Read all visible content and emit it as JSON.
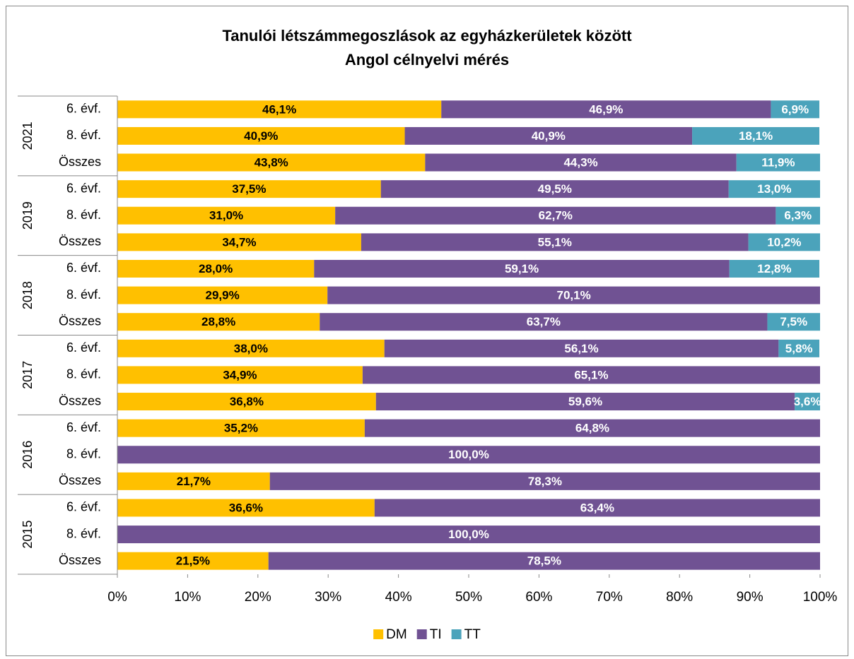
{
  "chart_data": {
    "type": "stacked-bar-horizontal",
    "title": [
      "Tanulói létszámmegoszlások az egyházkerületek között",
      "Angol célnyelvi mérés"
    ],
    "category_groups": [
      {
        "name": "2021",
        "categories": [
          "6. évf.",
          "8. évf.",
          "Összes"
        ]
      },
      {
        "name": "2019",
        "categories": [
          "6. évf.",
          "8. évf.",
          "Összes"
        ]
      },
      {
        "name": "2018",
        "categories": [
          "6. évf.",
          "8. évf.",
          "Összes"
        ]
      },
      {
        "name": "2017",
        "categories": [
          "6. évf.",
          "8. évf.",
          "Összes"
        ]
      },
      {
        "name": "2016",
        "categories": [
          "6. évf.",
          "8. évf.",
          "Összes"
        ]
      },
      {
        "name": "2015",
        "categories": [
          "6. évf.",
          "8. évf.",
          "Összes"
        ]
      }
    ],
    "series": [
      {
        "name": "DM",
        "color": "#FFC000",
        "label_color": "#000000",
        "values": [
          46.1,
          40.9,
          43.8,
          37.5,
          31.0,
          34.7,
          28.0,
          29.9,
          28.8,
          38.0,
          34.9,
          36.8,
          35.2,
          null,
          21.7,
          36.6,
          null,
          21.5
        ],
        "value_labels": [
          "46,1%",
          "40,9%",
          "43,8%",
          "37,5%",
          "31,0%",
          "34,7%",
          "28,0%",
          "29,9%",
          "28,8%",
          "38,0%",
          "34,9%",
          "36,8%",
          "35,2%",
          null,
          "21,7%",
          "36,6%",
          null,
          "21,5%"
        ]
      },
      {
        "name": "TI",
        "color": "#705293",
        "label_color": "#ffffff",
        "values": [
          46.9,
          40.9,
          44.3,
          49.5,
          62.7,
          55.1,
          59.1,
          70.1,
          63.7,
          56.1,
          65.1,
          59.6,
          64.8,
          100.0,
          78.3,
          63.4,
          100.0,
          78.5
        ],
        "value_labels": [
          "46,9%",
          "40,9%",
          "44,3%",
          "49,5%",
          "62,7%",
          "55,1%",
          "59,1%",
          "70,1%",
          "63,7%",
          "56,1%",
          "65,1%",
          "59,6%",
          "64,8%",
          "100,0%",
          "78,3%",
          "63,4%",
          "100,0%",
          "78,5%"
        ]
      },
      {
        "name": "TT",
        "color": "#4BA3BB",
        "label_color": "#ffffff",
        "values": [
          6.9,
          18.1,
          11.9,
          13.0,
          6.3,
          10.2,
          12.8,
          null,
          7.5,
          5.8,
          null,
          3.6,
          null,
          null,
          null,
          null,
          null,
          null
        ],
        "value_labels": [
          "6,9%",
          "18,1%",
          "11,9%",
          "13,0%",
          "6,3%",
          "10,2%",
          "12,8%",
          null,
          "7,5%",
          "5,8%",
          null,
          "3,6%",
          null,
          null,
          null,
          null,
          null,
          null
        ]
      }
    ],
    "xlim": [
      0,
      100
    ],
    "xticks": [
      {
        "value": 0,
        "label": "0%"
      },
      {
        "value": 10,
        "label": "10%"
      },
      {
        "value": 20,
        "label": "20%"
      },
      {
        "value": 30,
        "label": "30%"
      },
      {
        "value": 40,
        "label": "40%"
      },
      {
        "value": 50,
        "label": "50%"
      },
      {
        "value": 60,
        "label": "60%"
      },
      {
        "value": 70,
        "label": "70%"
      },
      {
        "value": 80,
        "label": "80%"
      },
      {
        "value": 90,
        "label": "90%"
      },
      {
        "value": 100,
        "label": "100%"
      }
    ],
    "legend": "bottom"
  }
}
